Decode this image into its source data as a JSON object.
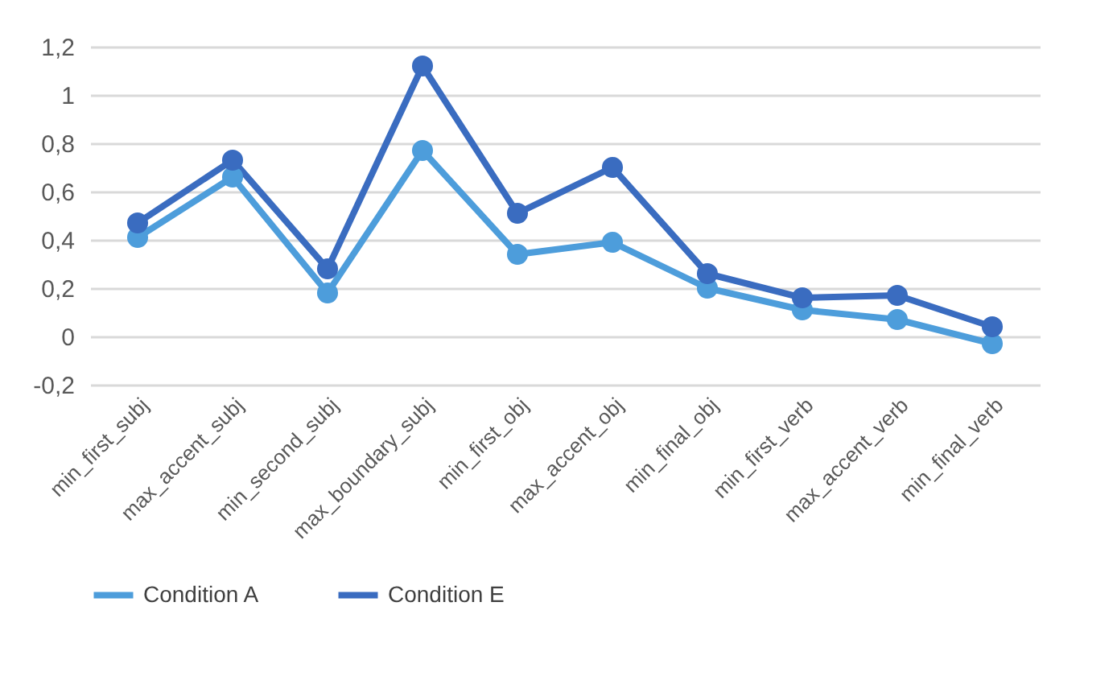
{
  "chart_data": {
    "type": "line",
    "categories": [
      "min_first_subj",
      "max_accent_subj",
      "min_second_subj",
      "max_boundary_subj",
      "min_first_obj",
      "max_accent_obj",
      "min_final_obj",
      "min_first_verb",
      "max_accent_verb",
      "min_final_verb"
    ],
    "series": [
      {
        "name": "Condition A",
        "color": "#4d9ddb",
        "values": [
          0.41,
          0.66,
          0.18,
          0.77,
          0.34,
          0.39,
          0.2,
          0.11,
          0.07,
          -0.03
        ]
      },
      {
        "name": "Condition E",
        "color": "#3a6cc0",
        "values": [
          0.47,
          0.73,
          0.28,
          1.12,
          0.51,
          0.7,
          0.26,
          0.16,
          0.17,
          0.04
        ]
      }
    ],
    "ylim": [
      -0.2,
      1.2
    ],
    "yticks": [
      {
        "value": -0.2,
        "label": "-0,2"
      },
      0,
      {
        "value": 0.2,
        "label": "0,2"
      },
      {
        "value": 0.4,
        "label": "0,4"
      },
      {
        "value": 0.6,
        "label": "0,6"
      },
      {
        "value": 0.8,
        "label": "0,8"
      },
      1,
      {
        "value": 1.2,
        "label": "1,2"
      }
    ],
    "grid": "y",
    "legend": "bottom",
    "marker": "circle",
    "line_style": "solid"
  }
}
